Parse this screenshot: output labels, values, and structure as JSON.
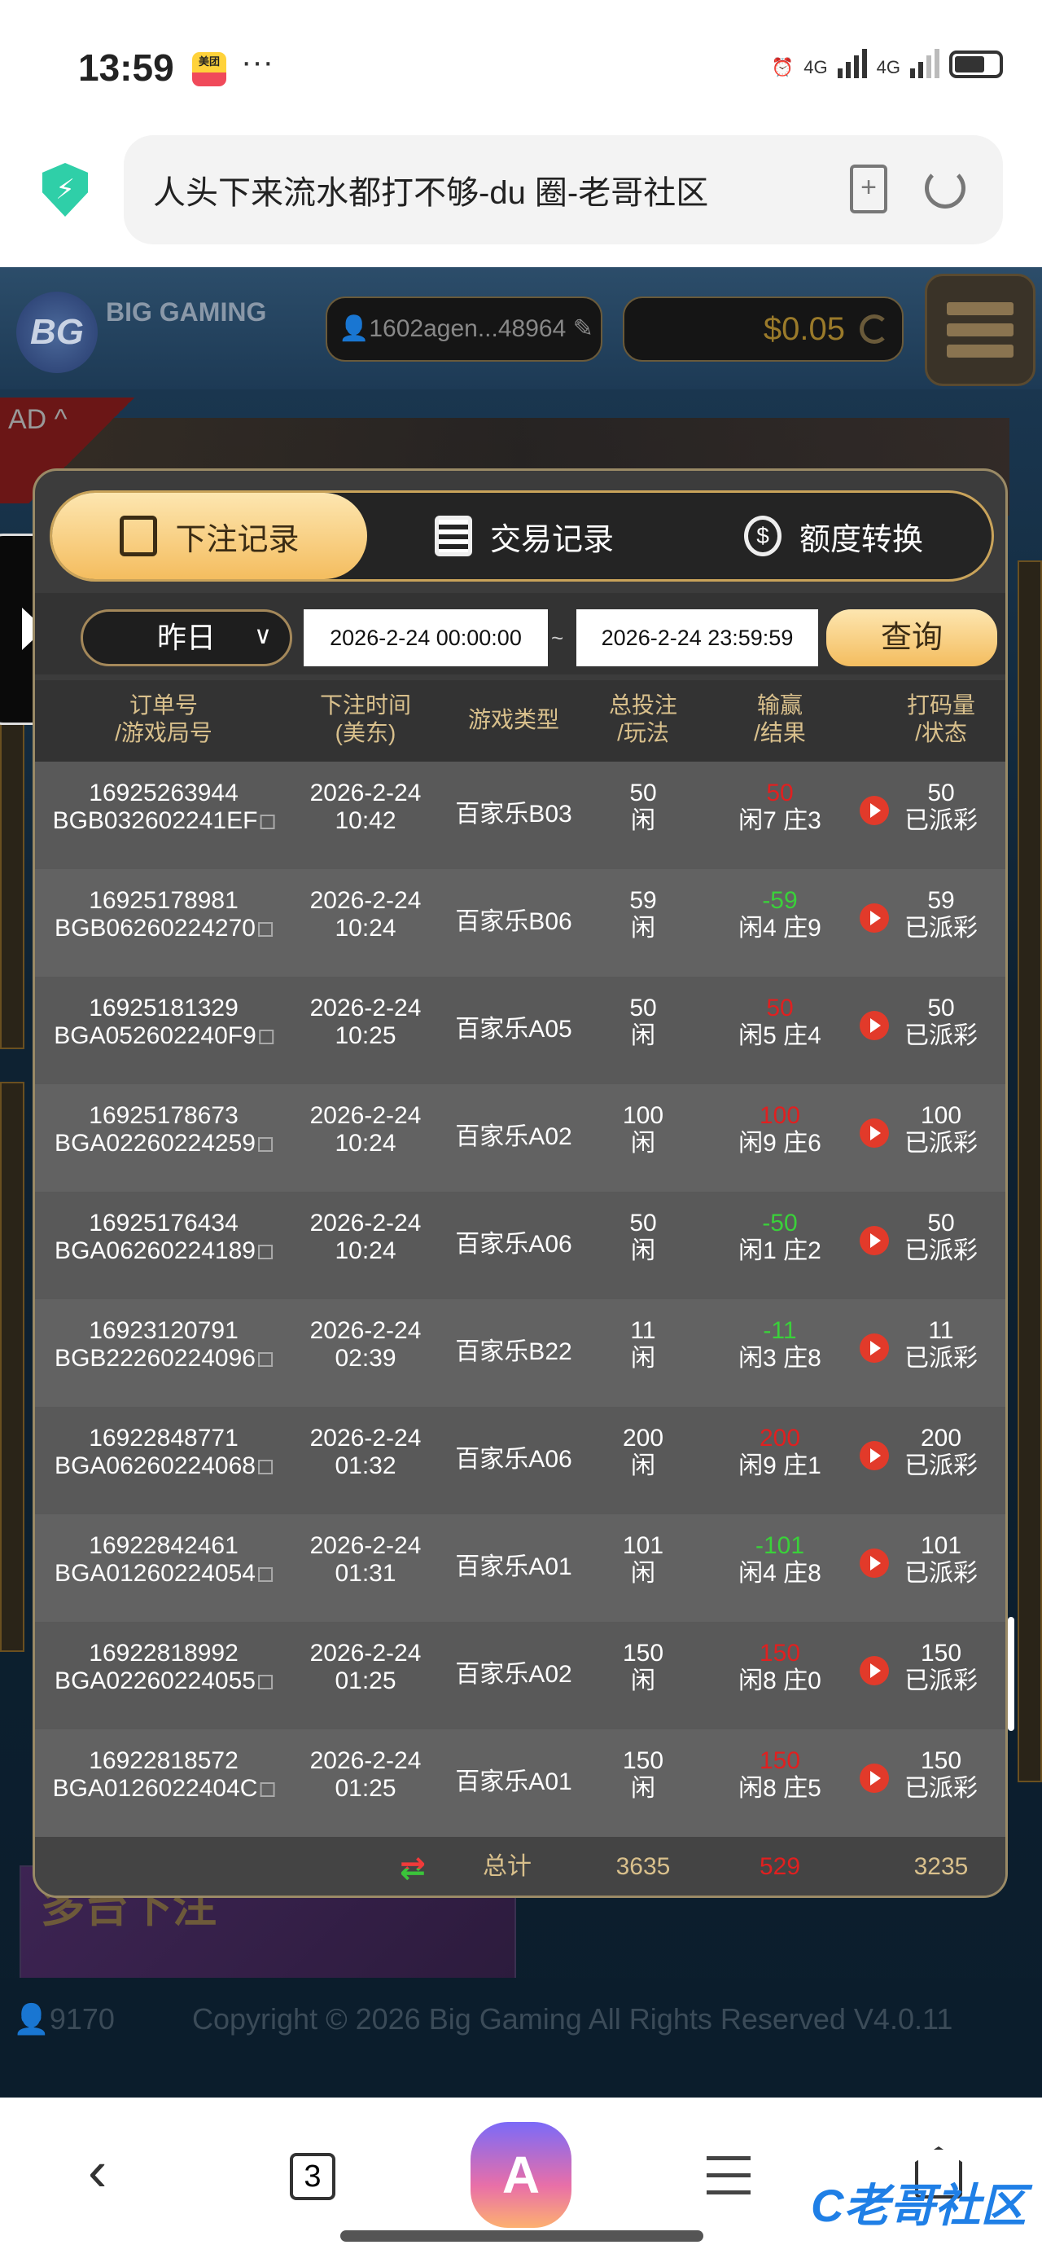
{
  "status_bar": {
    "time": "13:59",
    "app_badge": "美团",
    "more": "···",
    "network_1": "4G",
    "network_2": "4G"
  },
  "browser": {
    "url_title": "人头下来流水都打不够-du 圈-老哥社区",
    "tab_count": "3"
  },
  "game_header": {
    "logo": "BG",
    "brand": "BIG GAMING",
    "username": "1602agen...48964",
    "balance": "$0.05"
  },
  "ad": {
    "label": "AD ^"
  },
  "modal": {
    "tabs": [
      {
        "label": "下注记录",
        "active": true
      },
      {
        "label": "交易记录",
        "active": false
      },
      {
        "label": "额度转换",
        "active": false
      }
    ],
    "filter": {
      "range": "昨日",
      "start": "2026-2-24 00:00:00",
      "separator": "~",
      "end": "2026-2-24 23:59:59",
      "query_label": "查询"
    },
    "columns": [
      {
        "line1": "订单号",
        "line2": "/游戏局号"
      },
      {
        "line1": "下注时间",
        "line2": "(美东)"
      },
      {
        "line1": "游戏类型",
        "line2": ""
      },
      {
        "line1": "总投注",
        "line2": "/玩法"
      },
      {
        "line1": "输赢",
        "line2": "/结果"
      },
      {
        "line1": "打码量",
        "line2": "/状态"
      }
    ],
    "rows": [
      {
        "order": "16925263944",
        "round": "BGB032602241EF",
        "date": "2026-2-24",
        "time": "10:42",
        "game": "百家乐B03",
        "bet": "50",
        "play": "闲",
        "win": "50",
        "result": "闲7 庄3",
        "valid": "50",
        "status": "已派彩"
      },
      {
        "order": "16925178981",
        "round": "BGB06260224270",
        "date": "2026-2-24",
        "time": "10:24",
        "game": "百家乐B06",
        "bet": "59",
        "play": "闲",
        "win": "-59",
        "result": "闲4 庄9",
        "valid": "59",
        "status": "已派彩"
      },
      {
        "order": "16925181329",
        "round": "BGA052602240F9",
        "date": "2026-2-24",
        "time": "10:25",
        "game": "百家乐A05",
        "bet": "50",
        "play": "闲",
        "win": "50",
        "result": "闲5 庄4",
        "valid": "50",
        "status": "已派彩"
      },
      {
        "order": "16925178673",
        "round": "BGA02260224259",
        "date": "2026-2-24",
        "time": "10:24",
        "game": "百家乐A02",
        "bet": "100",
        "play": "闲",
        "win": "100",
        "result": "闲9 庄6",
        "valid": "100",
        "status": "已派彩"
      },
      {
        "order": "16925176434",
        "round": "BGA06260224189",
        "date": "2026-2-24",
        "time": "10:24",
        "game": "百家乐A06",
        "bet": "50",
        "play": "闲",
        "win": "-50",
        "result": "闲1 庄2",
        "valid": "50",
        "status": "已派彩"
      },
      {
        "order": "16923120791",
        "round": "BGB22260224096",
        "date": "2026-2-24",
        "time": "02:39",
        "game": "百家乐B22",
        "bet": "11",
        "play": "闲",
        "win": "-11",
        "result": "闲3 庄8",
        "valid": "11",
        "status": "已派彩"
      },
      {
        "order": "16922848771",
        "round": "BGA06260224068",
        "date": "2026-2-24",
        "time": "01:32",
        "game": "百家乐A06",
        "bet": "200",
        "play": "闲",
        "win": "200",
        "result": "闲9 庄1",
        "valid": "200",
        "status": "已派彩"
      },
      {
        "order": "16922842461",
        "round": "BGA01260224054",
        "date": "2026-2-24",
        "time": "01:31",
        "game": "百家乐A01",
        "bet": "101",
        "play": "闲",
        "win": "-101",
        "result": "闲4 庄8",
        "valid": "101",
        "status": "已派彩"
      },
      {
        "order": "16922818992",
        "round": "BGA02260224055",
        "date": "2026-2-24",
        "time": "01:25",
        "game": "百家乐A02",
        "bet": "150",
        "play": "闲",
        "win": "150",
        "result": "闲8 庄0",
        "valid": "150",
        "status": "已派彩"
      },
      {
        "order": "16922818572",
        "round": "BGA0126022404C",
        "date": "2026-2-24",
        "time": "01:25",
        "game": "百家乐A01",
        "bet": "150",
        "play": "闲",
        "win": "150",
        "result": "闲8 庄5",
        "valid": "150",
        "status": "已派彩"
      }
    ],
    "total": {
      "label": "总计",
      "bet": "3635",
      "win": "529",
      "valid": "3235"
    }
  },
  "promo": {
    "multi_table": "多台下注"
  },
  "footer": {
    "online": "9170",
    "copyright": "Copyright © 2026 Big Gaming All Rights Reserved  V4.0.11"
  },
  "watermark": "老哥社区",
  "colors": {
    "accent_gold": "#f4bd5f",
    "win_positive": "#e02020",
    "win_negative": "#3ad13a",
    "header_text": "#d9c08c"
  }
}
